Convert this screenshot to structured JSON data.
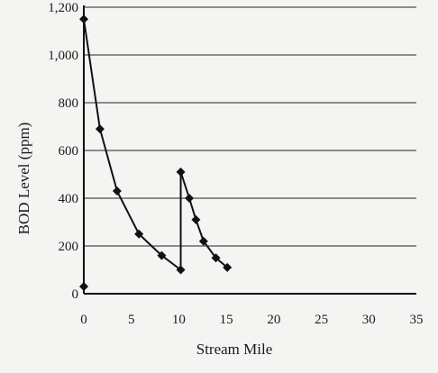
{
  "chart_data": {
    "type": "line",
    "xlabel": "Stream Mile",
    "ylabel": "BOD Level (ppm)",
    "xlim": [
      0,
      35
    ],
    "ylim": [
      0,
      1200
    ],
    "x_ticks": [
      0,
      5,
      10,
      15,
      20,
      25,
      30,
      35
    ],
    "y_ticks": [
      0,
      200,
      400,
      600,
      800,
      1000,
      1200
    ],
    "x_tick_labels": [
      "0",
      "5",
      "10",
      "15",
      "20",
      "25",
      "30",
      "35"
    ],
    "y_tick_labels": [
      "0",
      "200",
      "400",
      "600",
      "800",
      "1,000",
      "1,200"
    ],
    "grid": "horizontal",
    "series": [
      {
        "marker": "diamond",
        "color": "#111111",
        "points": [
          [
            0,
            30
          ],
          [
            0,
            1150
          ],
          [
            1.7,
            690
          ],
          [
            3.5,
            430
          ],
          [
            5.8,
            250
          ],
          [
            8.2,
            160
          ],
          [
            10.2,
            100
          ],
          [
            10.2,
            510
          ],
          [
            11.1,
            400
          ],
          [
            11.8,
            310
          ],
          [
            12.6,
            220
          ],
          [
            13.9,
            150
          ],
          [
            15.1,
            110
          ]
        ]
      }
    ]
  }
}
